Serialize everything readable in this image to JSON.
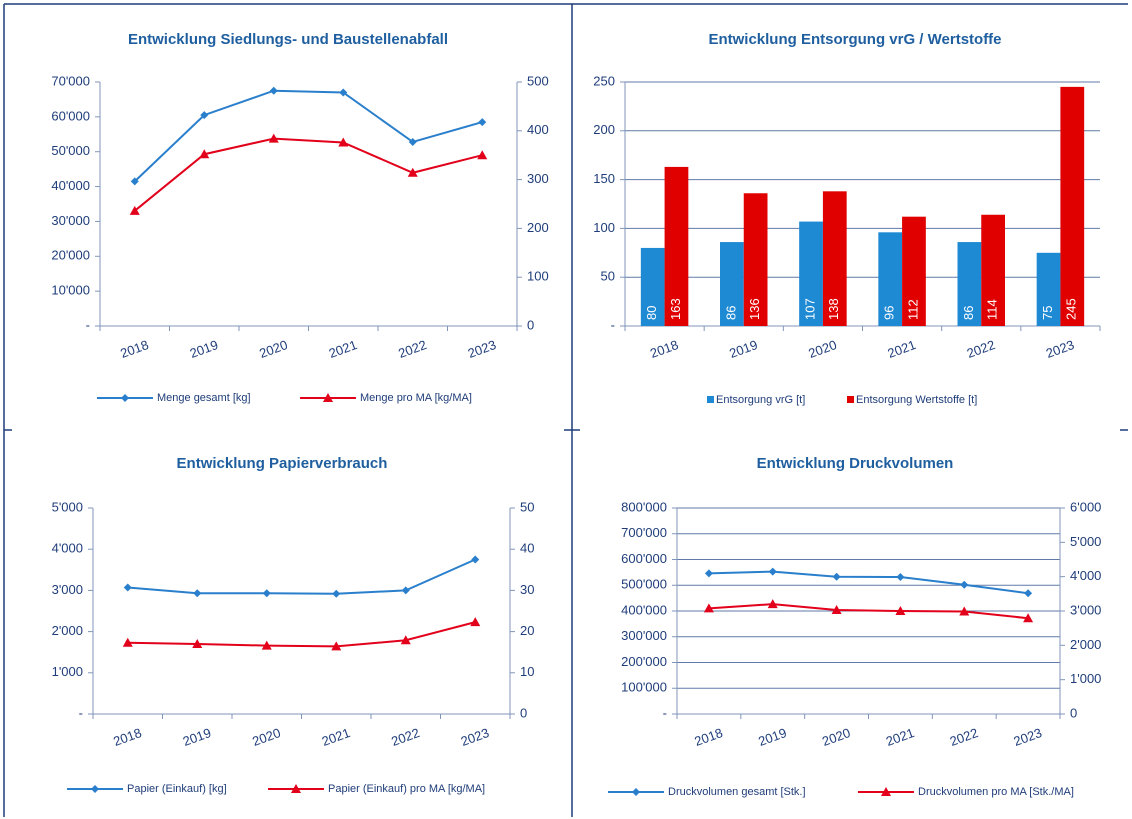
{
  "chart_data": [
    {
      "type": "line",
      "title": "Entwicklung Siedlungs- und Baustellenabfall",
      "categories": [
        "2018",
        "2019",
        "2020",
        "2021",
        "2022",
        "2023"
      ],
      "series": [
        {
          "name": "Menge gesamt [kg]",
          "color": "#2a7fcc",
          "marker": "diamond",
          "values": [
            41500,
            60500,
            67500,
            67000,
            52800,
            58500
          ]
        },
        {
          "name": "Menge pro MA [kg/MA]",
          "color": "#e2001a",
          "marker": "triangle",
          "axis": "y2",
          "values": [
            236,
            352,
            384,
            376,
            314,
            350
          ]
        }
      ],
      "ylim": [
        0,
        70000
      ],
      "yticks": [
        {
          "value": 0,
          "label": "-"
        },
        {
          "value": 10000,
          "label": "10'000"
        },
        {
          "value": 20000,
          "label": "20'000"
        },
        {
          "value": 30000,
          "label": "30'000"
        },
        {
          "value": 40000,
          "label": "40'000"
        },
        {
          "value": 50000,
          "label": "50'000"
        },
        {
          "value": 60000,
          "label": "60'000"
        },
        {
          "value": 70000,
          "label": "70'000"
        }
      ],
      "y2lim": [
        0,
        500
      ],
      "y2ticks": [
        0,
        100,
        200,
        300,
        400,
        500
      ],
      "grid": false
    },
    {
      "type": "bar",
      "title": "Entwicklung Entsorgung vrG / Wertstoffe",
      "categories": [
        "2018",
        "2019",
        "2020",
        "2021",
        "2022",
        "2023"
      ],
      "series": [
        {
          "name": "Entsorgung vrG [t]",
          "color": "#1f8ad4",
          "values": [
            80,
            86,
            107,
            96,
            86,
            75
          ]
        },
        {
          "name": "Entsorgung Wertstoffe [t]",
          "color": "#e00000",
          "values": [
            163,
            136,
            138,
            112,
            114,
            245
          ]
        }
      ],
      "ylim": [
        0,
        250
      ],
      "yticks": [
        {
          "value": 0,
          "label": "-"
        },
        50,
        100,
        150,
        200,
        250
      ],
      "grid": true
    },
    {
      "type": "line",
      "title": "Entwicklung Papierverbrauch",
      "categories": [
        "2018",
        "2019",
        "2020",
        "2021",
        "2022",
        "2023"
      ],
      "series": [
        {
          "name": "Papier (Einkauf) [kg]",
          "color": "#2a7fcc",
          "marker": "diamond",
          "values": [
            3070,
            2930,
            2930,
            2920,
            3000,
            3750
          ]
        },
        {
          "name": "Papier (Einkauf) pro MA [kg/MA]",
          "color": "#e2001a",
          "marker": "triangle",
          "axis": "y2",
          "values": [
            17.3,
            17.0,
            16.6,
            16.4,
            17.9,
            22.3
          ]
        }
      ],
      "ylim": [
        0,
        5000
      ],
      "yticks": [
        {
          "value": 0,
          "label": "-"
        },
        {
          "value": 1000,
          "label": "1'000"
        },
        {
          "value": 2000,
          "label": "2'000"
        },
        {
          "value": 3000,
          "label": "3'000"
        },
        {
          "value": 4000,
          "label": "4'000"
        },
        {
          "value": 5000,
          "label": "5'000"
        }
      ],
      "y2lim": [
        0,
        50
      ],
      "y2ticks": [
        0,
        10,
        20,
        30,
        40,
        50
      ],
      "grid": false
    },
    {
      "type": "line",
      "title": "Entwicklung Druckvolumen",
      "categories": [
        "2018",
        "2019",
        "2020",
        "2021",
        "2022",
        "2023"
      ],
      "series": [
        {
          "name": "Druckvolumen gesamt [Stk.]",
          "color": "#2a7fcc",
          "marker": "diamond",
          "values": [
            546000,
            553000,
            533000,
            532000,
            502000,
            469000
          ]
        },
        {
          "name": "Druckvolumen pro MA [Stk./MA]",
          "color": "#e2001a",
          "marker": "triangle",
          "axis": "y2",
          "values": [
            3075,
            3200,
            3030,
            3000,
            2985,
            2790
          ]
        }
      ],
      "ylim": [
        0,
        800000
      ],
      "yticks": [
        {
          "value": 0,
          "label": "-"
        },
        {
          "value": 100000,
          "label": "100'000"
        },
        {
          "value": 200000,
          "label": "200'000"
        },
        {
          "value": 300000,
          "label": "300'000"
        },
        {
          "value": 400000,
          "label": "400'000"
        },
        {
          "value": 500000,
          "label": "500'000"
        },
        {
          "value": 600000,
          "label": "600'000"
        },
        {
          "value": 700000,
          "label": "700'000"
        },
        {
          "value": 800000,
          "label": "800'000"
        }
      ],
      "y2lim": [
        0,
        6000
      ],
      "y2ticks": [
        0,
        {
          "value": 1000,
          "label": "1'000"
        },
        {
          "value": 2000,
          "label": "2'000"
        },
        {
          "value": 3000,
          "label": "3'000"
        },
        {
          "value": 4000,
          "label": "4'000"
        },
        {
          "value": 5000,
          "label": "5'000"
        },
        {
          "value": 6000,
          "label": "6'000"
        }
      ],
      "grid": true
    }
  ]
}
